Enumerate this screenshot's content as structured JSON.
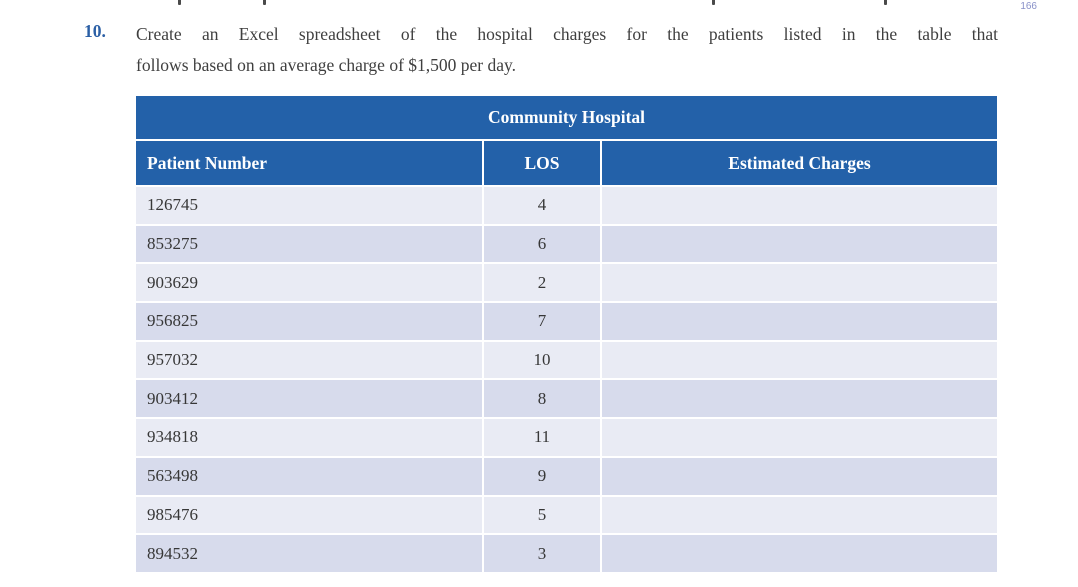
{
  "page": {
    "number": "166"
  },
  "exercise": {
    "number": "10.",
    "line1": "Create an Excel spreadsheet of the hospital charges for the patients listed in the table that",
    "line2": "follows based on an average charge of $1,500 per day."
  },
  "table": {
    "title": "Community Hospital",
    "columns": {
      "patient_number": "Patient Number",
      "los": "LOS",
      "estimated_charges": "Estimated Charges"
    },
    "rows": [
      {
        "patient_number": "126745",
        "los": "4",
        "estimated_charges": ""
      },
      {
        "patient_number": "853275",
        "los": "6",
        "estimated_charges": ""
      },
      {
        "patient_number": "903629",
        "los": "2",
        "estimated_charges": ""
      },
      {
        "patient_number": "956825",
        "los": "7",
        "estimated_charges": ""
      },
      {
        "patient_number": "957032",
        "los": "10",
        "estimated_charges": ""
      },
      {
        "patient_number": "903412",
        "los": "8",
        "estimated_charges": ""
      },
      {
        "patient_number": "934818",
        "los": "11",
        "estimated_charges": ""
      },
      {
        "patient_number": "563498",
        "los": "9",
        "estimated_charges": ""
      },
      {
        "patient_number": "985476",
        "los": "5",
        "estimated_charges": ""
      },
      {
        "patient_number": "894532",
        "los": "3",
        "estimated_charges": ""
      }
    ]
  },
  "colors": {
    "header_blue": "#2361a9",
    "row_light": "#e9ebf4",
    "row_dark": "#d7dbec",
    "exercise_number_blue": "#2b5fa5",
    "body_text": "#3f3f3f",
    "page_number_blue": "#8890c8",
    "header_text": "#ffffff"
  }
}
